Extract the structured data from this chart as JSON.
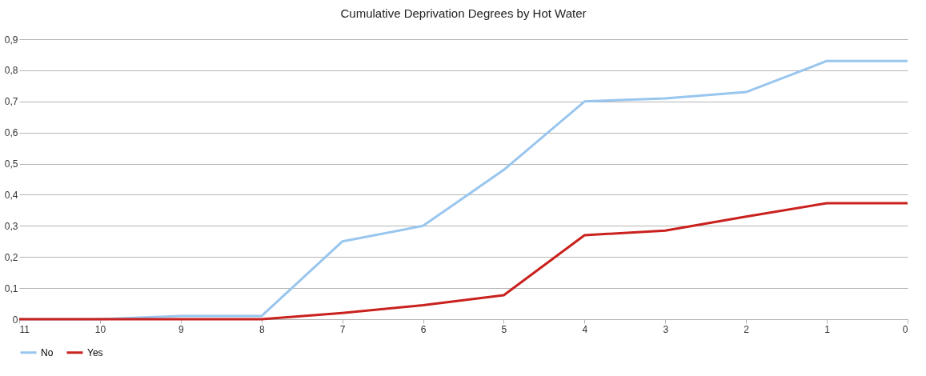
{
  "chart_data": {
    "type": "line",
    "title": "Cumulative Deprivation Degrees by Hot Water",
    "categories": [
      "11",
      "10",
      "9",
      "8",
      "7",
      "6",
      "5",
      "4",
      "3",
      "2",
      "1",
      "0"
    ],
    "series": [
      {
        "name": "No",
        "color": "#99c6ee",
        "values": [
          0,
          0,
          0.01,
          0.01,
          0.25,
          0.3,
          0.48,
          0.7,
          0.71,
          0.73,
          0.83,
          0.83
        ]
      },
      {
        "name": "Yes",
        "color": "#c9211e",
        "values": [
          0,
          0,
          0,
          0,
          0.02,
          0.045,
          0.077,
          0.27,
          0.285,
          0.33,
          0.373,
          0.373
        ]
      }
    ],
    "ylim": [
      0,
      0.9
    ],
    "yticks": [
      {
        "value": 0,
        "label": "0"
      },
      {
        "value": 0.1,
        "label": "0,1"
      },
      {
        "value": 0.2,
        "label": "0,2"
      },
      {
        "value": 0.3,
        "label": "0,3"
      },
      {
        "value": 0.4,
        "label": "0,4"
      },
      {
        "value": 0.5,
        "label": "0,5"
      },
      {
        "value": 0.6,
        "label": "0,6"
      },
      {
        "value": 0.7,
        "label": "0,7"
      },
      {
        "value": 0.8,
        "label": "0,8"
      },
      {
        "value": 0.9,
        "label": "0,9"
      }
    ],
    "grid": "y",
    "legend": "bottom",
    "marker": "none",
    "line_style": "solid"
  }
}
